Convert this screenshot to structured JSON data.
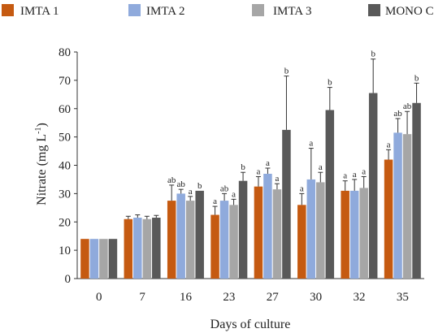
{
  "chart_data": {
    "type": "bar",
    "xlabel": "Days of culture",
    "ylabel": "Nitrate (mg L",
    "ylabel_superscript": "-1",
    "ylabel_suffix": ")",
    "categories": [
      "0",
      "7",
      "16",
      "23",
      "27",
      "30",
      "32",
      "35"
    ],
    "ylim": [
      0,
      80
    ],
    "yticks": [
      0,
      10,
      20,
      30,
      40,
      50,
      60,
      70,
      80
    ],
    "legend_position": "top",
    "series": [
      {
        "name": "IMTA 1",
        "color": "#c55a11",
        "values": [
          14,
          21,
          27.5,
          22.5,
          32.5,
          26,
          31,
          42
        ],
        "errors": [
          0,
          1,
          5.5,
          3,
          3.5,
          4,
          3.5,
          3.5
        ],
        "labels": [
          "",
          "",
          "ab",
          "a",
          "a",
          "a",
          "a",
          "a"
        ]
      },
      {
        "name": "IMTA 2",
        "color": "#8faadc",
        "values": [
          14,
          21.5,
          30,
          27.5,
          37,
          35,
          31,
          51.5
        ],
        "errors": [
          0,
          1,
          1.5,
          2.5,
          2,
          11,
          4,
          5
        ],
        "labels": [
          "",
          "",
          "ab",
          "ab",
          "a",
          "a",
          "a",
          "ab"
        ]
      },
      {
        "name": "IMTA 3",
        "color": "#a6a6a6",
        "values": [
          14,
          21,
          27.5,
          26,
          31.5,
          34,
          32,
          51
        ],
        "errors": [
          0,
          1,
          1.5,
          2,
          2,
          3.5,
          4,
          8
        ],
        "labels": [
          "",
          "",
          "a",
          "a",
          "a",
          "a",
          "a",
          "ab"
        ]
      },
      {
        "name": "MONO C",
        "color": "#595959",
        "values": [
          14,
          21.5,
          31,
          34.5,
          52.5,
          59.5,
          65.5,
          62
        ],
        "errors": [
          0,
          0.8,
          0,
          3,
          19,
          8,
          12,
          7
        ],
        "labels": [
          "",
          "",
          "b",
          "b",
          "b",
          "b",
          "b",
          "b"
        ]
      }
    ]
  }
}
